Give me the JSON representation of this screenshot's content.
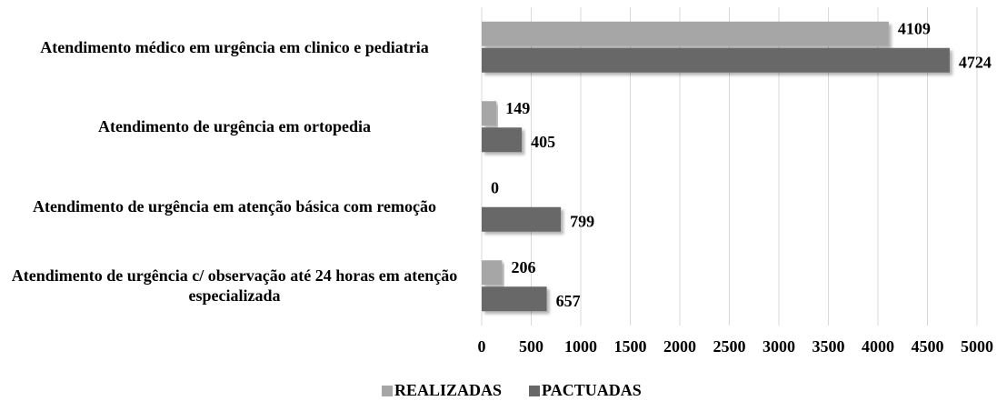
{
  "chart_data": {
    "type": "hbar",
    "categories": [
      "Atendimento médico em urgência em clinico e pediatria",
      "Atendimento de urgência em ortopedia",
      "Atendimento de urgência em atenção básica com remoção",
      "Atendimento de urgência c/ observação até 24 horas em atenção especializada"
    ],
    "series": [
      {
        "name": "REALIZADAS",
        "color": "#a6a6a6",
        "values": [
          4109,
          149,
          0,
          206
        ]
      },
      {
        "name": "PACTUADAS",
        "color": "#676767",
        "values": [
          4724,
          405,
          799,
          657
        ]
      }
    ],
    "xlim": [
      0,
      5000
    ],
    "xticks": [
      0,
      500,
      1000,
      1500,
      2000,
      2500,
      3000,
      3500,
      4000,
      4500,
      5000
    ],
    "grid": true,
    "legend": "bottom"
  }
}
